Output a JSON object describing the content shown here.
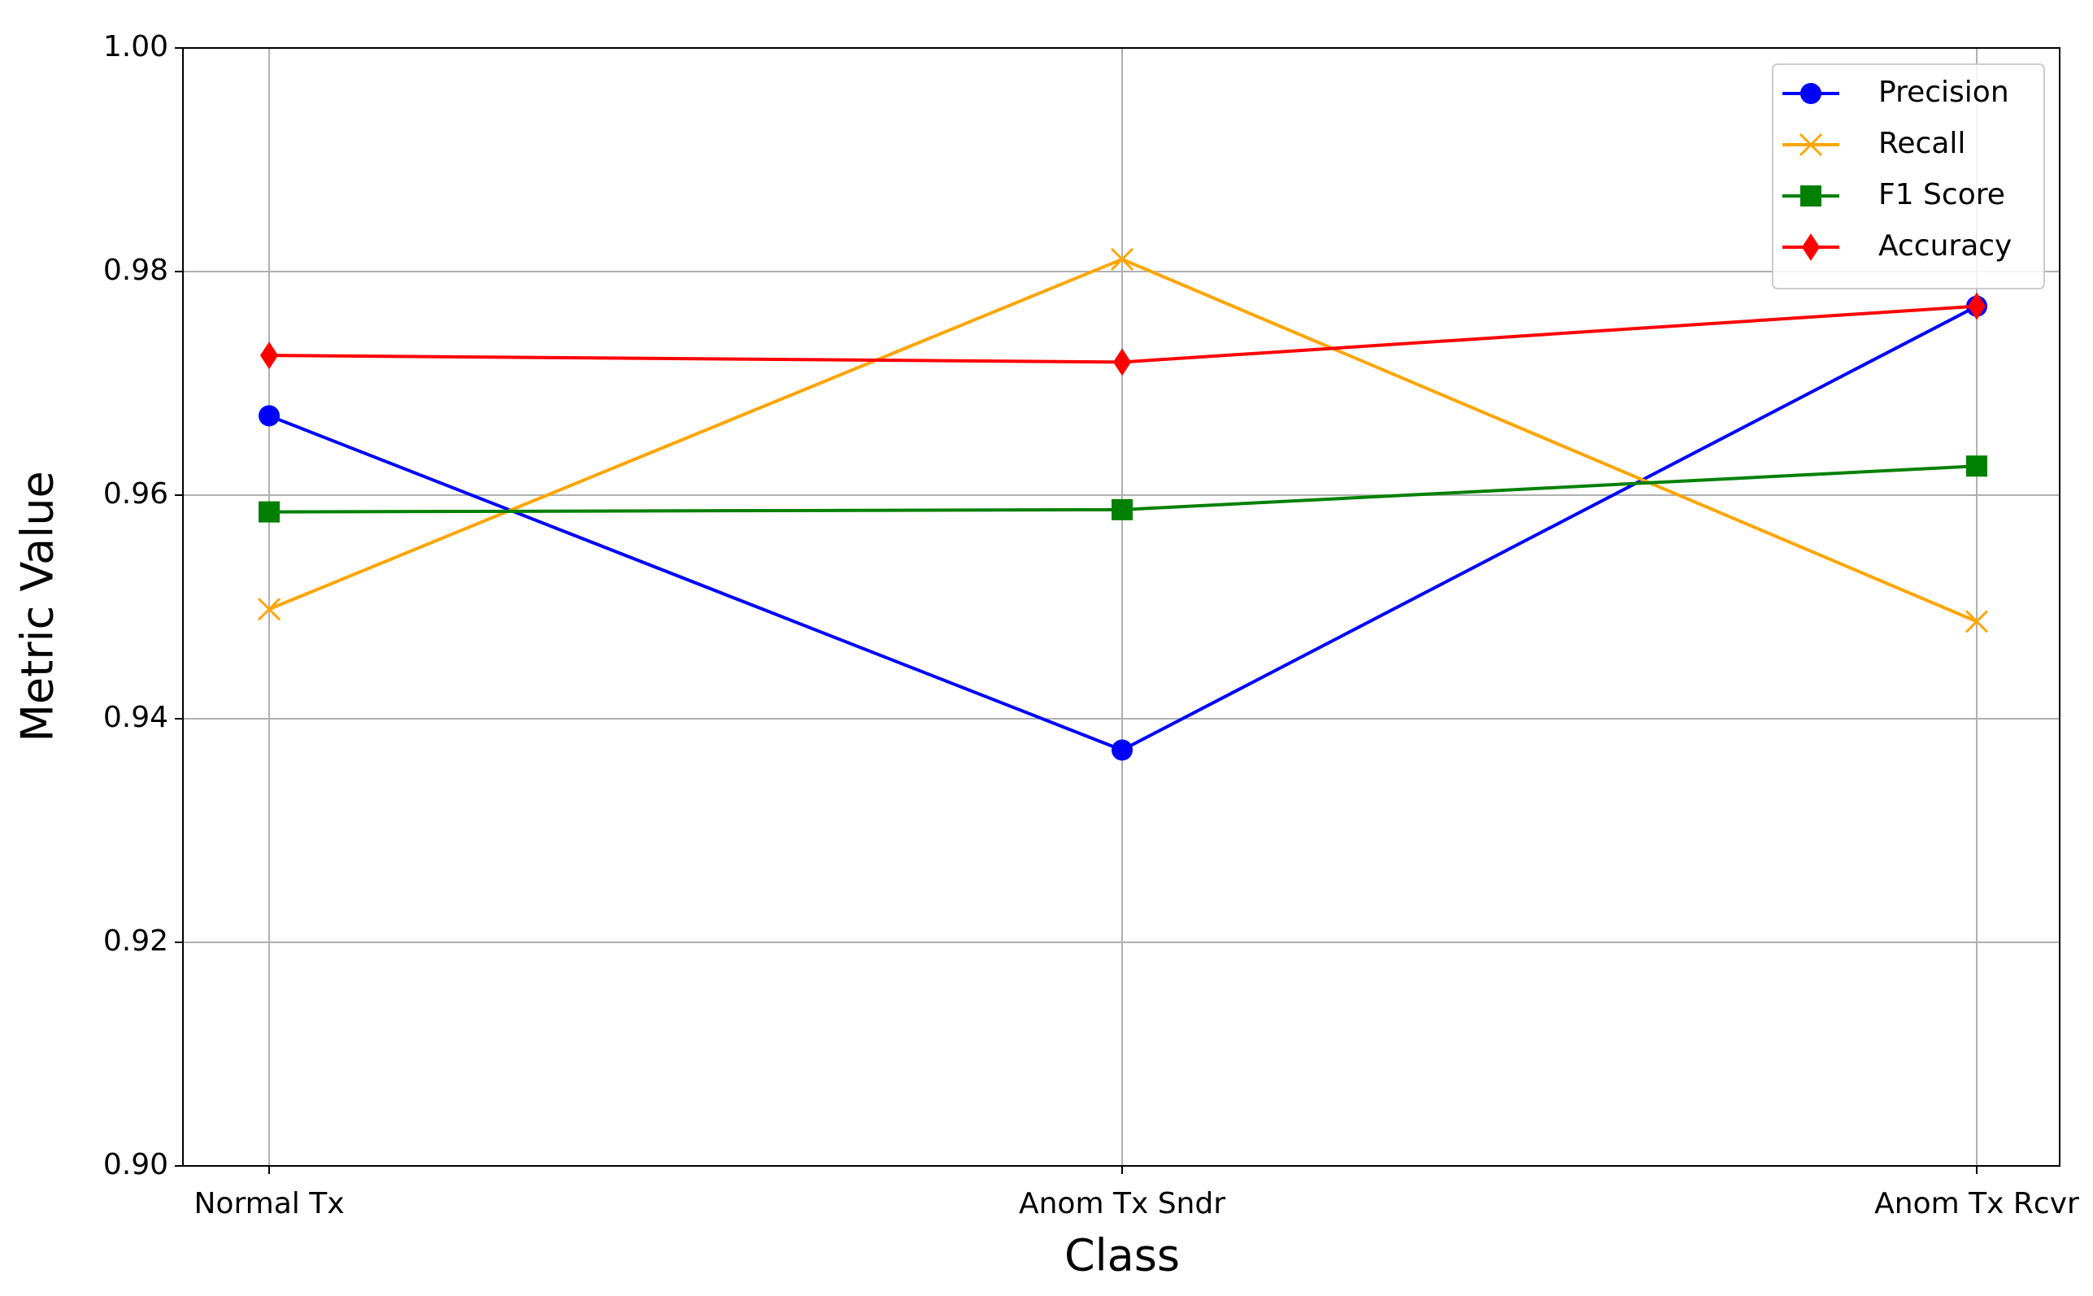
{
  "chart_data": {
    "type": "line",
    "xlabel": "Class",
    "ylabel": "Metric Value",
    "categories": [
      "Normal Tx",
      "Anom Tx Sndr",
      "Anom Tx Rcvr"
    ],
    "series": [
      {
        "name": "Precision",
        "color": "#0000ff",
        "marker": "circle",
        "values": [
          0.9671,
          0.9372,
          0.9769
        ]
      },
      {
        "name": "Recall",
        "color": "#ffa500",
        "marker": "x",
        "values": [
          0.9498,
          0.9811,
          0.9487
        ]
      },
      {
        "name": "F1 Score",
        "color": "#008000",
        "marker": "square",
        "values": [
          0.9585,
          0.9587,
          0.9626
        ]
      },
      {
        "name": "Accuracy",
        "color": "#ff0000",
        "marker": "diamond",
        "values": [
          0.9725,
          0.9719,
          0.9769
        ]
      }
    ],
    "ylim": [
      0.9,
      1.0
    ],
    "yticks": [
      {
        "value": 0.9,
        "label": "0.90"
      },
      0.92,
      0.94,
      0.96,
      0.98,
      {
        "value": 1.0,
        "label": "1.00"
      }
    ],
    "grid": true,
    "legend": "upper right"
  }
}
